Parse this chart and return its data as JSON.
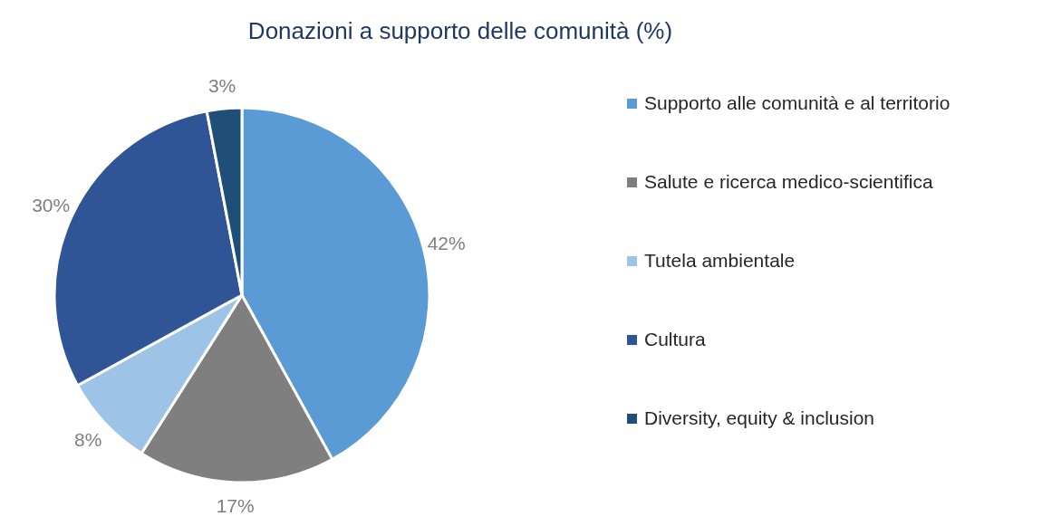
{
  "chart_data": {
    "type": "pie",
    "title": "Donazioni a supporto delle comunità (%)",
    "categories": [
      "Supporto alle comunità e al territorio",
      "Salute e ricerca medico-scientifica",
      "Tutela ambientale",
      "Cultura",
      "Diversity, equity & inclusion"
    ],
    "values": [
      42,
      17,
      8,
      30,
      3
    ],
    "value_labels": [
      "42%",
      "17%",
      "8%",
      "30%",
      "3%"
    ],
    "colors": [
      "#5b9bd5",
      "#7f7f7f",
      "#9dc3e6",
      "#2f5597",
      "#1f4e79"
    ],
    "legend": "right"
  }
}
